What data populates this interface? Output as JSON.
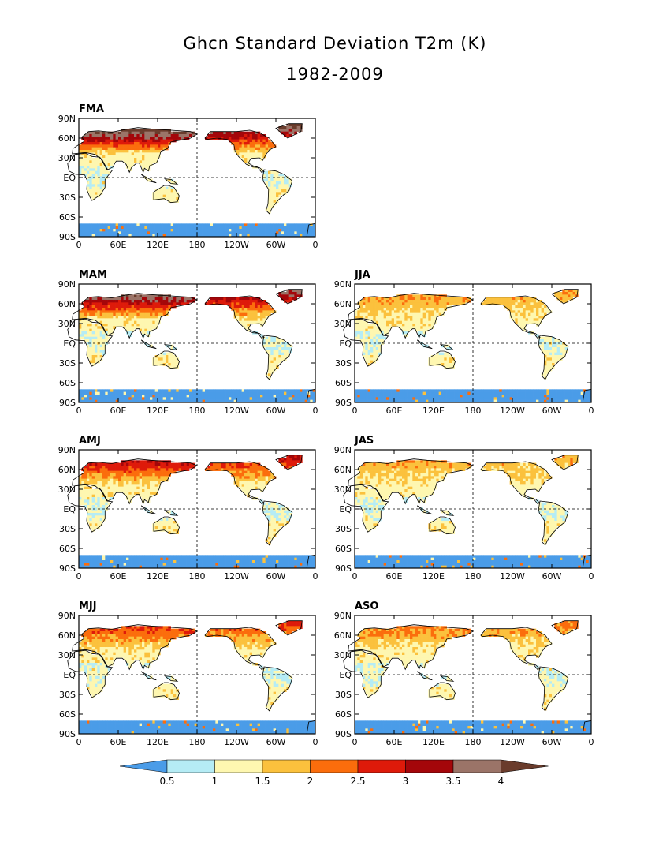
{
  "figure": {
    "title": "Ghcn Standard Deviation T2m (K)",
    "subtitle": "1982-2009"
  },
  "axes": {
    "lat_ticks": [
      "90N",
      "60N",
      "30N",
      "EQ",
      "30S",
      "60S",
      "90S"
    ],
    "lon_ticks": [
      "0",
      "60E",
      "120E",
      "180",
      "120W",
      "60W",
      "0"
    ]
  },
  "panels": [
    {
      "label": "FMA"
    },
    {
      "label": "MAM"
    },
    {
      "label": "JJA"
    },
    {
      "label": "AMJ"
    },
    {
      "label": "JAS"
    },
    {
      "label": "MJJ"
    },
    {
      "label": "ASO"
    }
  ],
  "colorbar": {
    "labels": [
      "0.5",
      "1",
      "1.5",
      "2",
      "2.5",
      "3",
      "3.5",
      "4"
    ],
    "colors": [
      "#4a9ce8",
      "#b5ecf5",
      "#fef7b0",
      "#fbc13d",
      "#fb6d0c",
      "#de1a0a",
      "#a4060a",
      "#9b7468",
      "#6a3c2c"
    ]
  }
}
